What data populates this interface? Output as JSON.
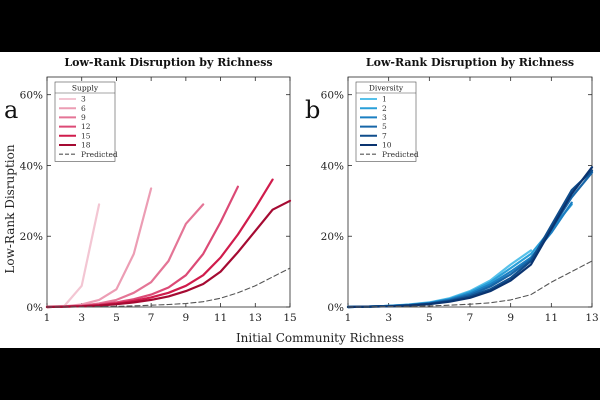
{
  "figure": {
    "xlabel": "Initial Community Richness",
    "ylabel": "Low-Rank Disruption"
  },
  "chart_data": [
    {
      "type": "line",
      "panel_letter": "a",
      "title": "Low-Rank Disruption by Richness",
      "xlabel": "Initial Community Richness",
      "ylabel": "Low-Rank Disruption",
      "xlim": [
        1,
        15
      ],
      "ylim": [
        0,
        0.65
      ],
      "xticks": [
        1,
        3,
        5,
        7,
        9,
        11,
        13,
        15
      ],
      "xtick_labels": [
        "1",
        "3",
        "5",
        "7",
        "9",
        "11",
        "13",
        "15"
      ],
      "yticks": [
        0,
        0.2,
        0.4,
        0.6
      ],
      "ytick_labels": [
        "0%",
        "20%",
        "40%",
        "60%"
      ],
      "legend": {
        "title": "Supply",
        "position": "top-left"
      },
      "series": [
        {
          "name": "3",
          "color": "#f3c6d3",
          "x": [
            1,
            2,
            3,
            4
          ],
          "y": [
            0,
            0.003,
            0.06,
            0.29
          ]
        },
        {
          "name": "6",
          "color": "#ec9db4",
          "x": [
            1,
            2,
            3,
            4,
            5,
            6,
            7
          ],
          "y": [
            0,
            0.002,
            0.007,
            0.02,
            0.05,
            0.15,
            0.335
          ]
        },
        {
          "name": "9",
          "color": "#e47596",
          "x": [
            1,
            2,
            3,
            4,
            5,
            6,
            7,
            8,
            9,
            10
          ],
          "y": [
            0,
            0.001,
            0.004,
            0.01,
            0.02,
            0.04,
            0.07,
            0.13,
            0.235,
            0.29
          ]
        },
        {
          "name": "12",
          "color": "#dc4a76",
          "x": [
            1,
            2,
            3,
            4,
            5,
            6,
            7,
            8,
            9,
            10,
            11,
            12
          ],
          "y": [
            0,
            0.001,
            0.003,
            0.007,
            0.013,
            0.022,
            0.035,
            0.055,
            0.09,
            0.15,
            0.24,
            0.34
          ]
        },
        {
          "name": "15",
          "color": "#d01c4c",
          "x": [
            1,
            2,
            3,
            4,
            5,
            6,
            7,
            8,
            9,
            10,
            11,
            12,
            13,
            14
          ],
          "y": [
            0,
            0.001,
            0.002,
            0.005,
            0.01,
            0.017,
            0.027,
            0.04,
            0.06,
            0.09,
            0.14,
            0.205,
            0.28,
            0.36
          ]
        },
        {
          "name": "18",
          "color": "#a50a32",
          "x": [
            1,
            2,
            3,
            4,
            5,
            6,
            7,
            8,
            9,
            10,
            11,
            12,
            13,
            14,
            15
          ],
          "y": [
            0,
            0.001,
            0.002,
            0.004,
            0.008,
            0.013,
            0.02,
            0.03,
            0.045,
            0.065,
            0.1,
            0.155,
            0.215,
            0.275,
            0.3
          ]
        },
        {
          "name": "Predicted",
          "color": "#555555",
          "dashed": true,
          "x": [
            1,
            2,
            3,
            4,
            5,
            6,
            7,
            8,
            9,
            10,
            11,
            12,
            13,
            14,
            15
          ],
          "y": [
            0,
            0,
            0,
            0.001,
            0.002,
            0.003,
            0.005,
            0.007,
            0.01,
            0.015,
            0.025,
            0.04,
            0.06,
            0.085,
            0.11
          ]
        }
      ]
    },
    {
      "type": "line",
      "panel_letter": "b",
      "title": "Low-Rank Disruption by Richness",
      "xlabel": "Initial Community Richness",
      "ylabel": "Low-Rank Disruption",
      "xlim": [
        1,
        13
      ],
      "ylim": [
        0,
        0.65
      ],
      "xticks": [
        1,
        3,
        5,
        7,
        9,
        11,
        13
      ],
      "xtick_labels": [
        "1",
        "3",
        "5",
        "7",
        "9",
        "11",
        "13"
      ],
      "yticks": [
        0,
        0.2,
        0.4,
        0.6
      ],
      "ytick_labels": [
        "0%",
        "20%",
        "40%",
        "60%"
      ],
      "legend": {
        "title": "Diversity",
        "position": "top-left"
      },
      "series": [
        {
          "name": "1",
          "color": "#56c1ea",
          "x": [
            1,
            2,
            3,
            4,
            5,
            6,
            7,
            8,
            9,
            10
          ],
          "y": [
            0,
            0.001,
            0.003,
            0.007,
            0.013,
            0.025,
            0.045,
            0.075,
            0.12,
            0.16
          ]
        },
        {
          "name": "2",
          "color": "#2a9fd8",
          "x": [
            1,
            2,
            3,
            4,
            5,
            6,
            7,
            8,
            9,
            10,
            11,
            12
          ],
          "y": [
            0,
            0.001,
            0.003,
            0.006,
            0.012,
            0.023,
            0.042,
            0.07,
            0.11,
            0.15,
            0.22,
            0.29
          ]
        },
        {
          "name": "3",
          "color": "#1b7fc2",
          "x": [
            1,
            2,
            3,
            4,
            5,
            6,
            7,
            8,
            9,
            10,
            11,
            12
          ],
          "y": [
            0,
            0.001,
            0.003,
            0.006,
            0.011,
            0.021,
            0.038,
            0.064,
            0.1,
            0.14,
            0.21,
            0.295
          ]
        },
        {
          "name": "5",
          "color": "#1766a8",
          "x": [
            1,
            2,
            3,
            4,
            5,
            6,
            7,
            8,
            9,
            10,
            11,
            12,
            13
          ],
          "y": [
            0,
            0.001,
            0.002,
            0.005,
            0.01,
            0.019,
            0.034,
            0.058,
            0.092,
            0.135,
            0.22,
            0.31,
            0.38
          ]
        },
        {
          "name": "7",
          "color": "#0f4d8c",
          "x": [
            1,
            2,
            3,
            4,
            5,
            6,
            7,
            8,
            9,
            10,
            11,
            12,
            13
          ],
          "y": [
            0,
            0.001,
            0.002,
            0.005,
            0.009,
            0.017,
            0.03,
            0.05,
            0.082,
            0.13,
            0.23,
            0.33,
            0.385
          ]
        },
        {
          "name": "10",
          "color": "#0a3470",
          "x": [
            1,
            2,
            3,
            4,
            5,
            6,
            7,
            8,
            9,
            10,
            11,
            12,
            13
          ],
          "y": [
            0,
            0.001,
            0.002,
            0.004,
            0.008,
            0.015,
            0.026,
            0.045,
            0.075,
            0.12,
            0.22,
            0.32,
            0.395
          ]
        },
        {
          "name": "Predicted",
          "color": "#555555",
          "dashed": true,
          "x": [
            1,
            2,
            3,
            4,
            5,
            6,
            7,
            8,
            9,
            10,
            11,
            12,
            13
          ],
          "y": [
            0,
            0,
            0.001,
            0.002,
            0.003,
            0.005,
            0.008,
            0.012,
            0.02,
            0.035,
            0.07,
            0.1,
            0.13
          ]
        }
      ]
    }
  ]
}
